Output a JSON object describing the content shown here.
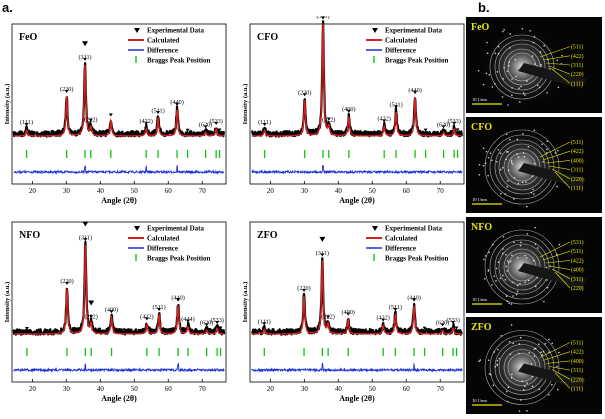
{
  "labels": {
    "a": "a.",
    "b": "b."
  },
  "xrd_legend": [
    "Experimental Data",
    "Calculated",
    "Difference",
    "Braggs Peak Position"
  ],
  "colors": {
    "experimental": "#000000",
    "calculated": "#d42020",
    "difference": "#1d2fd6",
    "bragg": "#13c113",
    "saed_label": "#e8e800"
  },
  "axis": {
    "ylabel": "Intensity (a.u.)",
    "xlabel": "Angle (2θ)",
    "xticks": [
      "20",
      "30",
      "40",
      "50",
      "60",
      "70"
    ]
  },
  "chart_data": [
    {
      "type": "line",
      "sample": "FeO",
      "title": "FeO",
      "xlim": [
        14,
        77
      ],
      "xticks": [
        20,
        30,
        40,
        50,
        60,
        70
      ],
      "peaks": [
        {
          "x": 18.3,
          "h": 0.05,
          "label": "(111)"
        },
        {
          "x": 30.1,
          "h": 0.33,
          "label": "(220)"
        },
        {
          "x": 35.5,
          "h": 0.6,
          "label": "(311)"
        },
        {
          "x": 37.2,
          "h": 0.07,
          "label": "(222)"
        },
        {
          "x": 43.1,
          "h": 0.13,
          "label": ""
        },
        {
          "x": 53.5,
          "h": 0.06,
          "label": "(422)"
        },
        {
          "x": 57.0,
          "h": 0.15,
          "label": "(511)"
        },
        {
          "x": 62.6,
          "h": 0.22,
          "label": "(440)"
        },
        {
          "x": 71.0,
          "h": 0.03,
          "label": "(620)"
        },
        {
          "x": 74.1,
          "h": 0.06,
          "label": "(533)"
        }
      ],
      "bragg": [
        18.3,
        30.1,
        35.5,
        37.2,
        43.1,
        53.5,
        57.0,
        62.6,
        65.7,
        71.0,
        74.1,
        75.1
      ],
      "diff_spikes": [
        35.5,
        53.5,
        62.6
      ]
    },
    {
      "type": "line",
      "sample": "CFO",
      "title": "CFO",
      "xlim": [
        14,
        77
      ],
      "xticks": [
        20,
        30,
        40,
        50,
        60,
        70
      ],
      "peaks": [
        {
          "x": 18.3,
          "h": 0.05,
          "label": "(111)"
        },
        {
          "x": 30.1,
          "h": 0.3,
          "label": "(220)"
        },
        {
          "x": 35.5,
          "h": 0.95,
          "label": "(311)"
        },
        {
          "x": 37.2,
          "h": 0.07,
          "label": "(222)"
        },
        {
          "x": 43.1,
          "h": 0.16,
          "label": "(400)"
        },
        {
          "x": 53.5,
          "h": 0.08,
          "label": "(422)"
        },
        {
          "x": 57.0,
          "h": 0.2,
          "label": "(511)"
        },
        {
          "x": 62.6,
          "h": 0.32,
          "label": "(440)"
        },
        {
          "x": 71.0,
          "h": 0.03,
          "label": "(620)"
        },
        {
          "x": 74.1,
          "h": 0.06,
          "label": "(533)"
        }
      ],
      "bragg": [
        18.3,
        30.1,
        35.5,
        37.2,
        43.1,
        53.5,
        57.0,
        62.6,
        65.7,
        71.0,
        74.1,
        75.1
      ],
      "diff_spikes": [
        35.5
      ]
    },
    {
      "type": "line",
      "sample": "NFO",
      "title": "NFO",
      "xlim": [
        14,
        77
      ],
      "xticks": [
        20,
        30,
        40,
        50,
        60,
        70
      ],
      "peaks": [
        {
          "x": 30.2,
          "h": 0.38,
          "label": "(220)"
        },
        {
          "x": 35.6,
          "h": 0.75,
          "label": "(311)"
        },
        {
          "x": 37.3,
          "h": 0.08,
          "label": "(222)"
        },
        {
          "x": 43.3,
          "h": 0.14,
          "label": "(400)"
        },
        {
          "x": 53.7,
          "h": 0.08,
          "label": "(422)"
        },
        {
          "x": 57.3,
          "h": 0.16,
          "label": "(511)"
        },
        {
          "x": 62.9,
          "h": 0.24,
          "label": "(440)"
        },
        {
          "x": 65.8,
          "h": 0.06,
          "label": "(444)"
        },
        {
          "x": 71.3,
          "h": 0.03,
          "label": "(620)"
        },
        {
          "x": 74.4,
          "h": 0.05,
          "label": "(533)"
        }
      ],
      "bragg": [
        18.4,
        30.2,
        35.6,
        37.3,
        43.3,
        53.7,
        57.3,
        62.9,
        65.8,
        71.3,
        74.4,
        75.4
      ],
      "diff_spikes": [
        35.6,
        62.9
      ]
    },
    {
      "type": "line",
      "sample": "ZFO",
      "title": "ZFO",
      "xlim": [
        14,
        77
      ],
      "xticks": [
        20,
        30,
        40,
        50,
        60,
        70
      ],
      "peaks": [
        {
          "x": 18.2,
          "h": 0.04,
          "label": "(111)"
        },
        {
          "x": 29.9,
          "h": 0.32,
          "label": "(220)"
        },
        {
          "x": 35.3,
          "h": 0.62,
          "label": "(311)"
        },
        {
          "x": 37.0,
          "h": 0.08,
          "label": "(222)"
        },
        {
          "x": 42.9,
          "h": 0.12,
          "label": "(400)"
        },
        {
          "x": 53.2,
          "h": 0.07,
          "label": "(422)"
        },
        {
          "x": 56.8,
          "h": 0.16,
          "label": "(511)"
        },
        {
          "x": 62.3,
          "h": 0.24,
          "label": "(440)"
        },
        {
          "x": 70.7,
          "h": 0.03,
          "label": "(620)"
        },
        {
          "x": 73.8,
          "h": 0.05,
          "label": "(533)"
        }
      ],
      "bragg": [
        18.2,
        29.9,
        35.3,
        37.0,
        42.9,
        53.2,
        56.8,
        62.3,
        65.4,
        70.7,
        73.8,
        74.8
      ],
      "diff_spikes": [
        35.3,
        62.3
      ]
    }
  ],
  "saed": [
    {
      "sample": "FeO",
      "rings": [
        "(511)",
        "(422)",
        "(311)",
        "(220)",
        "(111)"
      ],
      "scale": "10 1/nm"
    },
    {
      "sample": "CFO",
      "rings": [
        "(511)",
        "(422)",
        "(400)",
        "(311)",
        "(220)",
        "(111)"
      ],
      "scale": "10 1/nm"
    },
    {
      "sample": "NFO",
      "rings": [
        "(531)",
        "(511)",
        "(422)",
        "(400)",
        "(311)",
        "(220)"
      ],
      "scale": "10 1/nm"
    },
    {
      "sample": "ZFO",
      "rings": [
        "(511)",
        "(422)",
        "(400)",
        "(311)",
        "(220)",
        "(111)"
      ],
      "scale": "10 1/nm"
    }
  ]
}
